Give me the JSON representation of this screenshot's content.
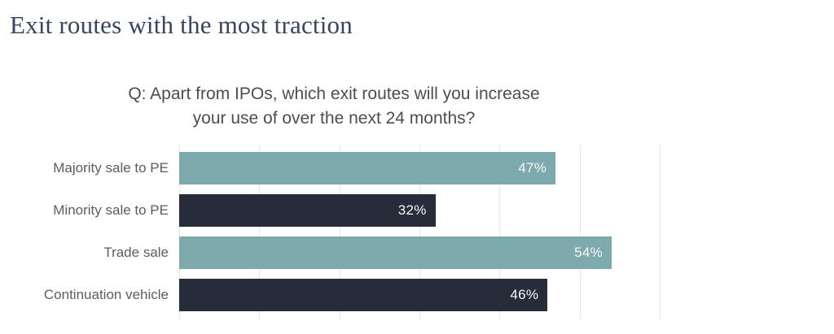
{
  "header": {
    "title": "Exit routes with the most traction"
  },
  "chart_data": {
    "type": "bar",
    "orientation": "horizontal",
    "title": "Q: Apart from IPOs, which exit routes will you increase your use of over the next 24 months?",
    "title_lines": [
      "Q: Apart from IPOs, which exit routes will you increase",
      "your use of over the next 24 months?"
    ],
    "categories": [
      "Majority sale to PE",
      "Minority sale to PE",
      "Trade sale",
      "Continuation vehicle"
    ],
    "values": [
      47,
      32,
      54,
      46
    ],
    "value_labels": [
      "47%",
      "32%",
      "54%",
      "46%"
    ],
    "bar_colors": [
      "#7caaad",
      "#262c3a",
      "#7caaad",
      "#262c3a"
    ],
    "xlabel": "",
    "ylabel": "",
    "xlim": [
      0,
      60
    ],
    "grid_step": 10,
    "grid": true,
    "legend": "none",
    "value_label_position": "inside-end"
  },
  "colors": {
    "title_text": "#36465f",
    "question_text": "#4d4d4d",
    "category_text": "#5d5d5d",
    "value_text": "#f7f7f7",
    "teal_bar": "#7caaad",
    "navy_bar": "#262c3a",
    "gridline": "#e6e6e6",
    "background": "#ffffff"
  }
}
